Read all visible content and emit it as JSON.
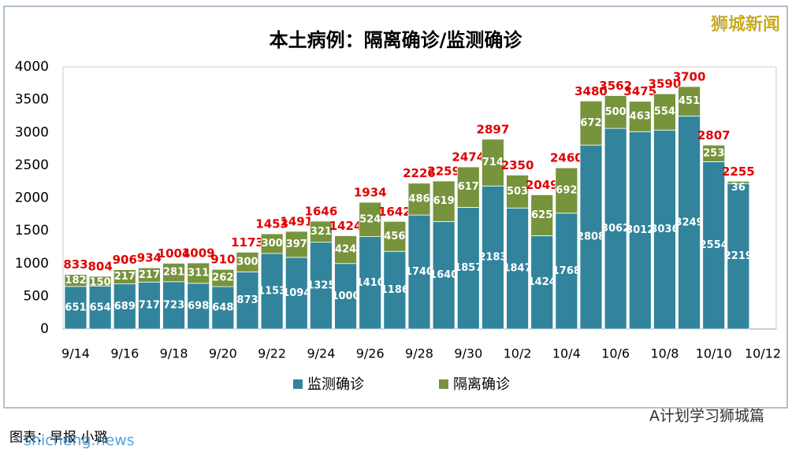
{
  "chart_data": {
    "type": "stacked_bar",
    "title": "本土病例：隔离确诊/监测确诊",
    "categories": [
      "9/14",
      null,
      "9/16",
      null,
      "9/18",
      null,
      "9/20",
      null,
      "9/22",
      null,
      "9/24",
      null,
      "9/26",
      null,
      "9/28",
      null,
      "9/30",
      null,
      "10/2",
      null,
      "10/4",
      null,
      "10/6",
      null,
      "10/8",
      null,
      "10/10",
      null,
      "10/12"
    ],
    "series": [
      {
        "name": "监测确诊",
        "color": "#31849b",
        "values": [
          651,
          654,
          689,
          717,
          723,
          698,
          648,
          873,
          1153,
          1094,
          1325,
          1000,
          1410,
          1186,
          1740,
          1640,
          1857,
          2183,
          1847,
          1424,
          1768,
          2808,
          3062,
          3012,
          3036,
          3249,
          2554,
          2219,
          null
        ]
      },
      {
        "name": "隔离确诊",
        "color": "#77933c",
        "values": [
          182,
          150,
          217,
          217,
          281,
          311,
          262,
          300,
          300,
          397,
          321,
          424,
          524,
          456,
          486,
          619,
          617,
          714,
          503,
          625,
          692,
          672,
          500,
          463,
          554,
          451,
          253,
          36,
          null
        ]
      }
    ],
    "totals": [
      833,
      804,
      906,
      934,
      1004,
      1009,
      910,
      1173,
      1453,
      1491,
      1646,
      1424,
      1934,
      1642,
      2226,
      2259,
      2474,
      2897,
      2350,
      2049,
      2460,
      3480,
      3562,
      3475,
      3590,
      3700,
      2807,
      2255,
      null
    ],
    "totals_color": "#e00000",
    "ylim": [
      0,
      4000
    ],
    "yticks": [
      0,
      500,
      1000,
      1500,
      2000,
      2500,
      3000,
      3500,
      4000
    ],
    "grid": false,
    "legend": "bottom",
    "watermark": "狮城新闻",
    "footer_credit": "A计划学习狮城篇",
    "footer_source": "图表：早报 小璐",
    "footer_site": "shicheng.news"
  }
}
